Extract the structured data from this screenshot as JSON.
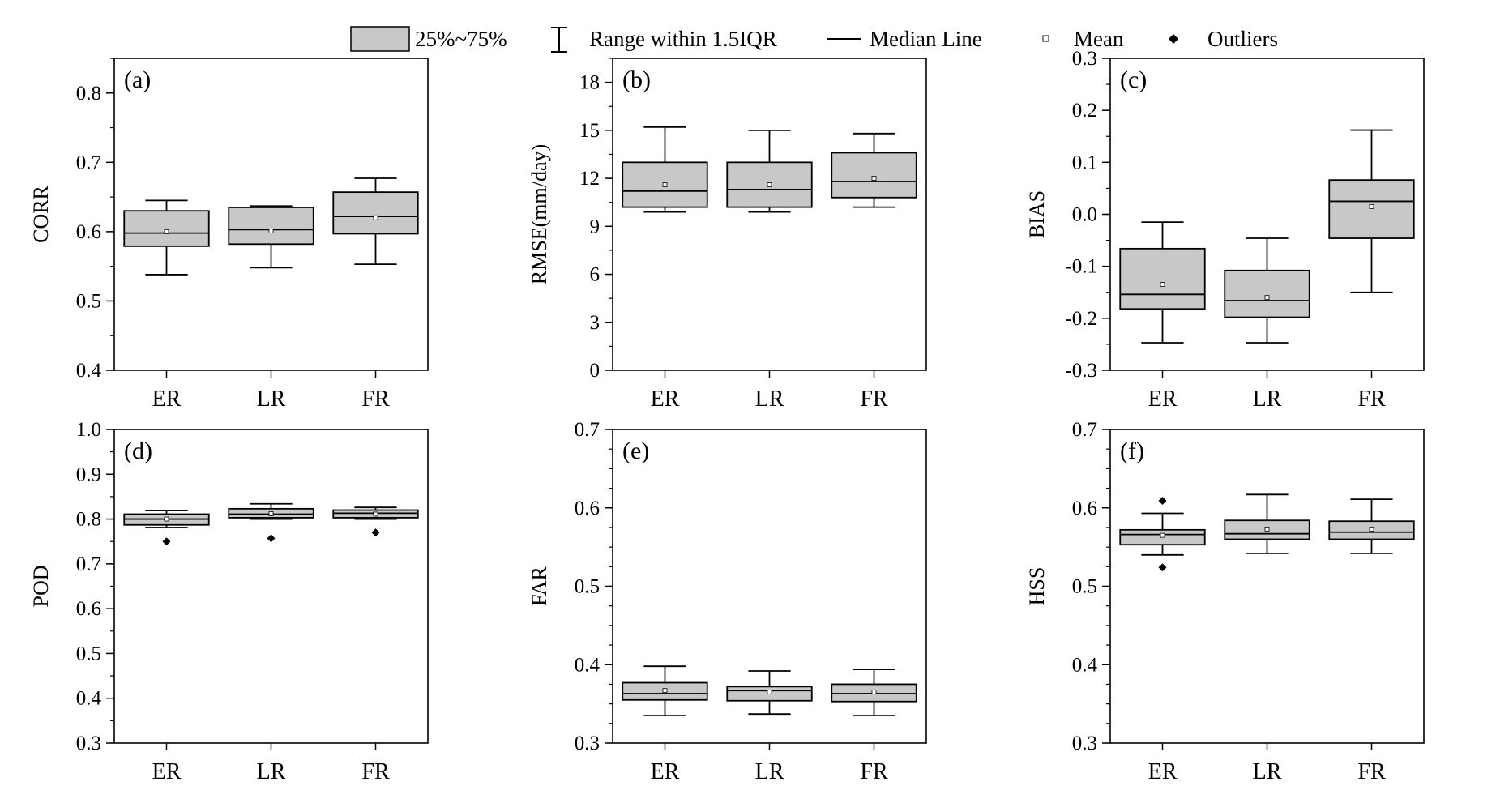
{
  "legend": {
    "box": "25%~75%",
    "whisker": "Range within 1.5IQR",
    "median": "Median Line",
    "mean": "Mean",
    "outliers": "Outliers"
  },
  "colors": {
    "box_fill": "#c8c8c8",
    "stroke": "#000000",
    "background": "#ffffff"
  },
  "chart_data": [
    {
      "type": "box",
      "panel": "(a)",
      "ylabel": "CORR",
      "ylim": [
        0.4,
        0.85
      ],
      "yticks": [
        "0.4",
        "0.5",
        "0.6",
        "0.7",
        "0.8"
      ],
      "yminor": 0.05,
      "categories": [
        "ER",
        "LR",
        "FR"
      ],
      "boxes": [
        {
          "min": 0.538,
          "q1": 0.579,
          "median": 0.598,
          "q3": 0.63,
          "max": 0.645,
          "mean": 0.6,
          "outliers": []
        },
        {
          "min": 0.548,
          "q1": 0.582,
          "median": 0.603,
          "q3": 0.635,
          "max": 0.637,
          "mean": 0.601,
          "outliers": []
        },
        {
          "min": 0.553,
          "q1": 0.597,
          "median": 0.622,
          "q3": 0.657,
          "max": 0.677,
          "mean": 0.62,
          "outliers": []
        }
      ]
    },
    {
      "type": "box",
      "panel": "(b)",
      "ylabel": "RMSE(mm/day)",
      "ylim": [
        0,
        19.5
      ],
      "yticks": [
        "0",
        "3",
        "6",
        "9",
        "12",
        "15",
        "18"
      ],
      "yminor": 1.5,
      "categories": [
        "ER",
        "LR",
        "FR"
      ],
      "boxes": [
        {
          "min": 9.9,
          "q1": 10.2,
          "median": 11.2,
          "q3": 13.0,
          "max": 15.2,
          "mean": 11.6,
          "outliers": []
        },
        {
          "min": 9.9,
          "q1": 10.2,
          "median": 11.3,
          "q3": 13.0,
          "max": 15.0,
          "mean": 11.6,
          "outliers": []
        },
        {
          "min": 10.2,
          "q1": 10.8,
          "median": 11.8,
          "q3": 13.6,
          "max": 14.8,
          "mean": 12.0,
          "outliers": []
        }
      ]
    },
    {
      "type": "box",
      "panel": "(c)",
      "ylabel": "BIAS",
      "ylim": [
        -0.3,
        0.3
      ],
      "yticks": [
        "-0.3",
        "-0.2",
        "-0.1",
        "0.0",
        "0.1",
        "0.2",
        "0.3"
      ],
      "yminor": 0.05,
      "categories": [
        "ER",
        "LR",
        "FR"
      ],
      "boxes": [
        {
          "min": -0.247,
          "q1": -0.182,
          "median": -0.154,
          "q3": -0.066,
          "max": -0.015,
          "mean": -0.135,
          "outliers": []
        },
        {
          "min": -0.247,
          "q1": -0.198,
          "median": -0.166,
          "q3": -0.108,
          "max": -0.046,
          "mean": -0.16,
          "outliers": []
        },
        {
          "min": -0.15,
          "q1": -0.046,
          "median": 0.025,
          "q3": 0.066,
          "max": 0.162,
          "mean": 0.015,
          "outliers": []
        }
      ]
    },
    {
      "type": "box",
      "panel": "(d)",
      "ylabel": "POD",
      "ylim": [
        0.3,
        1.0
      ],
      "yticks": [
        "0.3",
        "0.4",
        "0.5",
        "0.6",
        "0.7",
        "0.8",
        "0.9",
        "1.0"
      ],
      "yminor": 0.05,
      "categories": [
        "ER",
        "LR",
        "FR"
      ],
      "boxes": [
        {
          "min": 0.781,
          "q1": 0.787,
          "median": 0.8,
          "q3": 0.811,
          "max": 0.819,
          "mean": 0.8,
          "outliers": [
            0.75
          ]
        },
        {
          "min": 0.8,
          "q1": 0.803,
          "median": 0.811,
          "q3": 0.823,
          "max": 0.834,
          "mean": 0.812,
          "outliers": [
            0.757
          ]
        },
        {
          "min": 0.8,
          "q1": 0.803,
          "median": 0.813,
          "q3": 0.82,
          "max": 0.826,
          "mean": 0.811,
          "outliers": [
            0.77
          ]
        }
      ]
    },
    {
      "type": "box",
      "panel": "(e)",
      "ylabel": "FAR",
      "ylim": [
        0.3,
        0.7
      ],
      "yticks": [
        "0.3",
        "0.4",
        "0.5",
        "0.6",
        "0.7"
      ],
      "yminor": 0.025,
      "categories": [
        "ER",
        "LR",
        "FR"
      ],
      "boxes": [
        {
          "min": 0.335,
          "q1": 0.355,
          "median": 0.363,
          "q3": 0.377,
          "max": 0.398,
          "mean": 0.367,
          "outliers": []
        },
        {
          "min": 0.337,
          "q1": 0.354,
          "median": 0.367,
          "q3": 0.372,
          "max": 0.392,
          "mean": 0.365,
          "outliers": []
        },
        {
          "min": 0.335,
          "q1": 0.353,
          "median": 0.363,
          "q3": 0.375,
          "max": 0.394,
          "mean": 0.365,
          "outliers": []
        }
      ]
    },
    {
      "type": "box",
      "panel": "(f)",
      "ylabel": "HSS",
      "ylim": [
        0.3,
        0.7
      ],
      "yticks": [
        "0.3",
        "0.4",
        "0.5",
        "0.6",
        "0.7"
      ],
      "yminor": 0.025,
      "categories": [
        "ER",
        "LR",
        "FR"
      ],
      "boxes": [
        {
          "min": 0.54,
          "q1": 0.553,
          "median": 0.566,
          "q3": 0.572,
          "max": 0.593,
          "mean": 0.565,
          "outliers": [
            0.524,
            0.609
          ]
        },
        {
          "min": 0.542,
          "q1": 0.56,
          "median": 0.567,
          "q3": 0.584,
          "max": 0.617,
          "mean": 0.573,
          "outliers": []
        },
        {
          "min": 0.542,
          "q1": 0.56,
          "median": 0.569,
          "q3": 0.583,
          "max": 0.611,
          "mean": 0.573,
          "outliers": []
        }
      ]
    }
  ]
}
